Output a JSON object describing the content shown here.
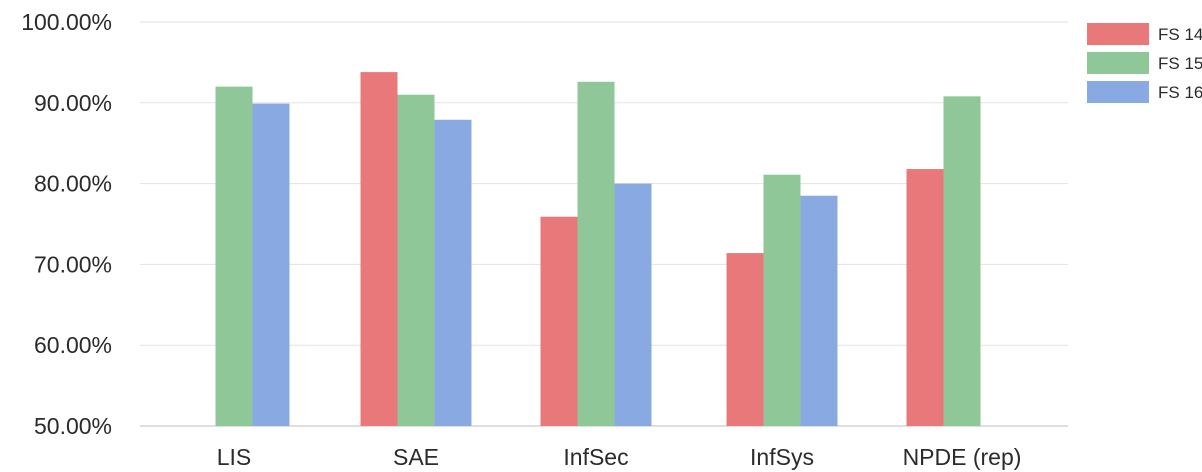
{
  "chart_data": {
    "type": "bar",
    "title": "",
    "xlabel": "",
    "ylabel": "",
    "ylim": [
      50,
      100
    ],
    "yticks": [
      "50.00%",
      "60.00%",
      "70.00%",
      "80.00%",
      "90.00%",
      "100.00%"
    ],
    "ytick_values": [
      50,
      60,
      70,
      80,
      90,
      100
    ],
    "categories": [
      "LIS",
      "SAE",
      "InfSec",
      "InfSys",
      "NPDE (rep)"
    ],
    "series": [
      {
        "name": "FS 14",
        "color": "#e8787a",
        "values": [
          null,
          93.8,
          75.9,
          71.4,
          81.8
        ]
      },
      {
        "name": "FS 15",
        "color": "#8fc798",
        "values": [
          92.0,
          91.0,
          92.6,
          81.1,
          90.8
        ]
      },
      {
        "name": "FS 16",
        "color": "#89a9e3",
        "values": [
          89.9,
          87.9,
          80.0,
          78.5,
          null
        ]
      }
    ],
    "grid": true,
    "legend_position": "top-right"
  }
}
